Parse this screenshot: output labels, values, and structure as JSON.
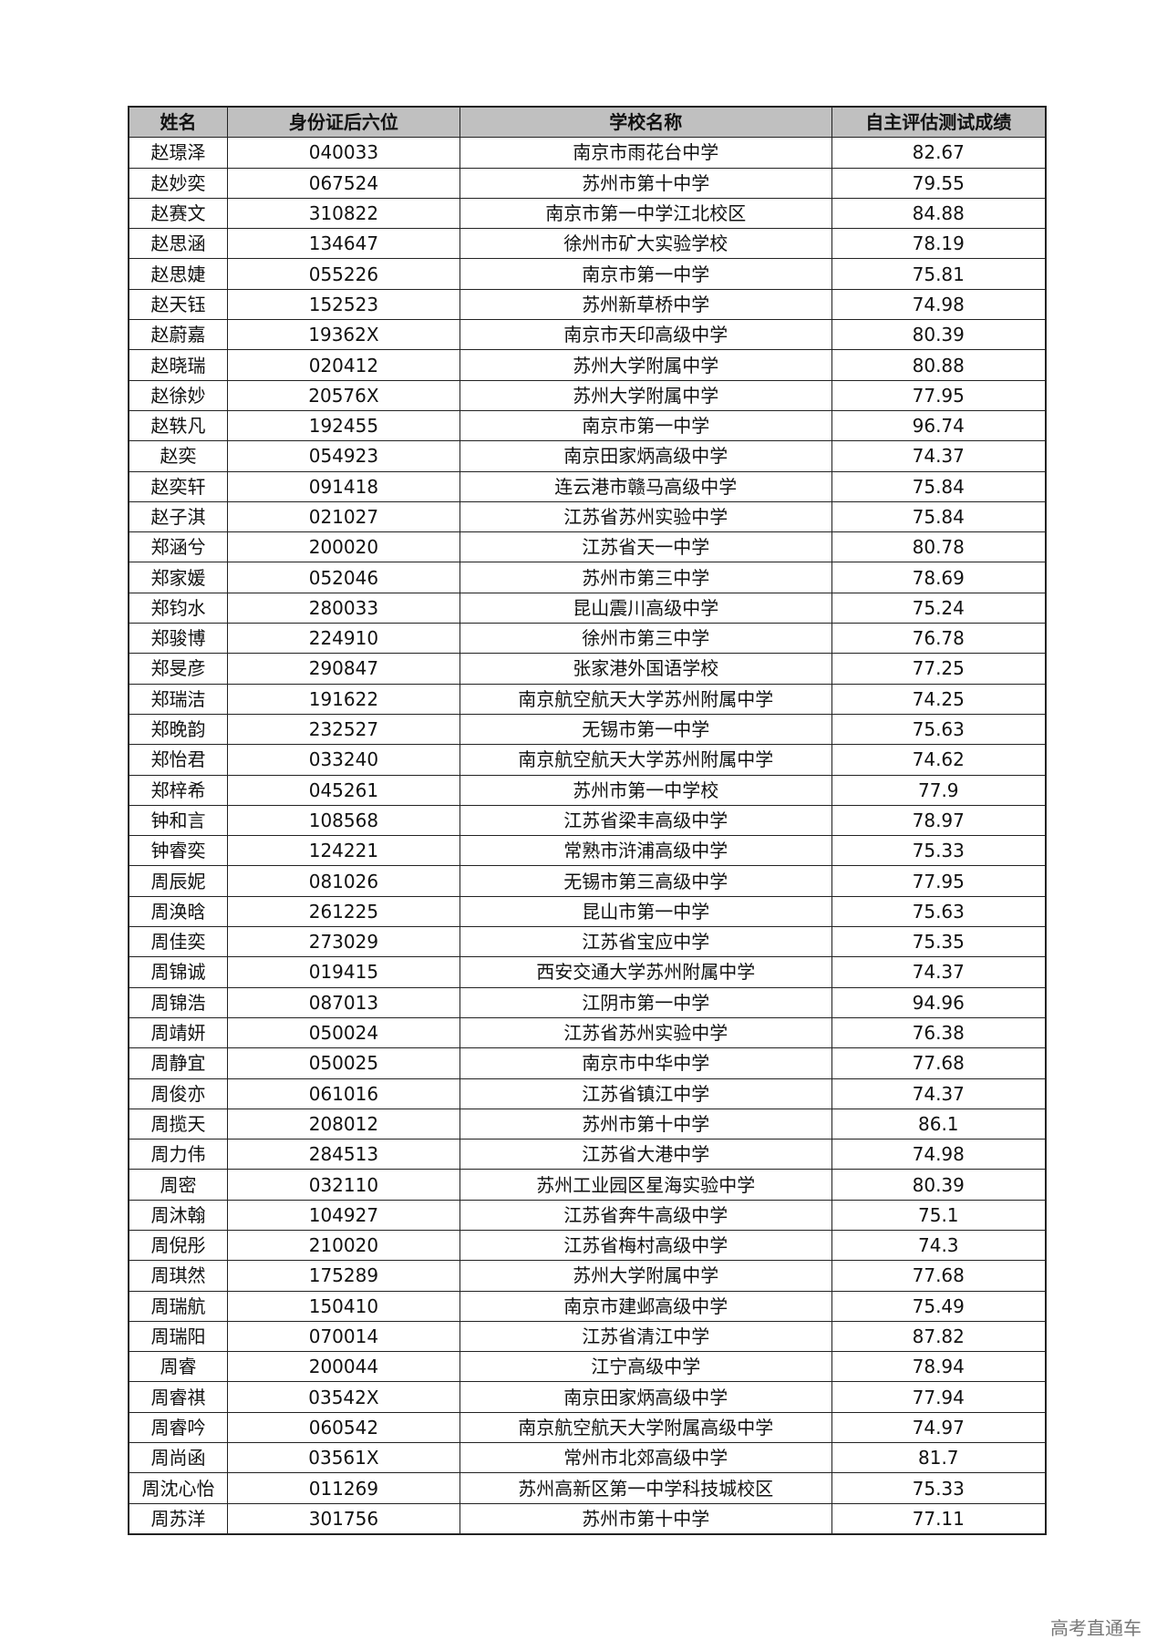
{
  "table": {
    "headers": [
      "姓名",
      "身份证后六位",
      "学校名称",
      "自主评估测试成绩"
    ],
    "rows": [
      [
        "赵璟泽",
        "040033",
        "南京市雨花台中学",
        "82.67"
      ],
      [
        "赵妙奕",
        "067524",
        "苏州市第十中学",
        "79.55"
      ],
      [
        "赵赛文",
        "310822",
        "南京市第一中学江北校区",
        "84.88"
      ],
      [
        "赵思涵",
        "134647",
        "徐州市矿大实验学校",
        "78.19"
      ],
      [
        "赵思婕",
        "055226",
        "南京市第一中学",
        "75.81"
      ],
      [
        "赵天钰",
        "152523",
        "苏州新草桥中学",
        "74.98"
      ],
      [
        "赵蔚嘉",
        "19362X",
        "南京市天印高级中学",
        "80.39"
      ],
      [
        "赵晓瑞",
        "020412",
        "苏州大学附属中学",
        "80.88"
      ],
      [
        "赵徐妙",
        "20576X",
        "苏州大学附属中学",
        "77.95"
      ],
      [
        "赵轶凡",
        "192455",
        "南京市第一中学",
        "96.74"
      ],
      [
        "赵奕",
        "054923",
        "南京田家炳高级中学",
        "74.37"
      ],
      [
        "赵奕轩",
        "091418",
        "连云港市赣马高级中学",
        "75.84"
      ],
      [
        "赵子淇",
        "021027",
        "江苏省苏州实验中学",
        "75.84"
      ],
      [
        "郑涵兮",
        "200020",
        "江苏省天一中学",
        "80.78"
      ],
      [
        "郑家媛",
        "052046",
        "苏州市第三中学",
        "78.69"
      ],
      [
        "郑钧水",
        "280033",
        "昆山震川高级中学",
        "75.24"
      ],
      [
        "郑骏博",
        "224910",
        "徐州市第三中学",
        "76.78"
      ],
      [
        "郑旻彦",
        "290847",
        "张家港外国语学校",
        "77.25"
      ],
      [
        "郑瑞洁",
        "191622",
        "南京航空航天大学苏州附属中学",
        "74.25"
      ],
      [
        "郑晚韵",
        "232527",
        "无锡市第一中学",
        "75.63"
      ],
      [
        "郑怡君",
        "033240",
        "南京航空航天大学苏州附属中学",
        "74.62"
      ],
      [
        "郑梓希",
        "045261",
        "苏州市第一中学校",
        "77.9"
      ],
      [
        "钟和言",
        "108568",
        "江苏省梁丰高级中学",
        "78.97"
      ],
      [
        "钟睿奕",
        "124221",
        "常熟市浒浦高级中学",
        "75.33"
      ],
      [
        "周辰妮",
        "081026",
        "无锡市第三高级中学",
        "77.95"
      ],
      [
        "周涣晗",
        "261225",
        "昆山市第一中学",
        "75.63"
      ],
      [
        "周佳奕",
        "273029",
        "江苏省宝应中学",
        "75.35"
      ],
      [
        "周锦诚",
        "019415",
        "西安交通大学苏州附属中学",
        "74.37"
      ],
      [
        "周锦浩",
        "087013",
        "江阴市第一中学",
        "94.96"
      ],
      [
        "周靖妍",
        "050024",
        "江苏省苏州实验中学",
        "76.38"
      ],
      [
        "周静宜",
        "050025",
        "南京市中华中学",
        "77.68"
      ],
      [
        "周俊亦",
        "061016",
        "江苏省镇江中学",
        "74.37"
      ],
      [
        "周揽天",
        "208012",
        "苏州市第十中学",
        "86.1"
      ],
      [
        "周力伟",
        "284513",
        "江苏省大港中学",
        "74.98"
      ],
      [
        "周密",
        "032110",
        "苏州工业园区星海实验中学",
        "80.39"
      ],
      [
        "周沐翰",
        "104927",
        "江苏省奔牛高级中学",
        "75.1"
      ],
      [
        "周倪彤",
        "210020",
        "江苏省梅村高级中学",
        "74.3"
      ],
      [
        "周琪然",
        "175289",
        "苏州大学附属中学",
        "77.68"
      ],
      [
        "周瑞航",
        "150410",
        "南京市建邺高级中学",
        "75.49"
      ],
      [
        "周瑞阳",
        "070014",
        "江苏省清江中学",
        "87.82"
      ],
      [
        "周睿",
        "200044",
        "江宁高级中学",
        "78.94"
      ],
      [
        "周睿祺",
        "03542X",
        "南京田家炳高级中学",
        "77.94"
      ],
      [
        "周睿吟",
        "060542",
        "南京航空航天大学附属高级中学",
        "74.97"
      ],
      [
        "周尚函",
        "03561X",
        "常州市北郊高级中学",
        "81.7"
      ],
      [
        "周沈心怡",
        "011269",
        "苏州高新区第一中学科技城校区",
        "75.33"
      ],
      [
        "周苏洋",
        "301756",
        "苏州市第十中学",
        "77.11"
      ]
    ]
  },
  "watermark": "高考直通车"
}
